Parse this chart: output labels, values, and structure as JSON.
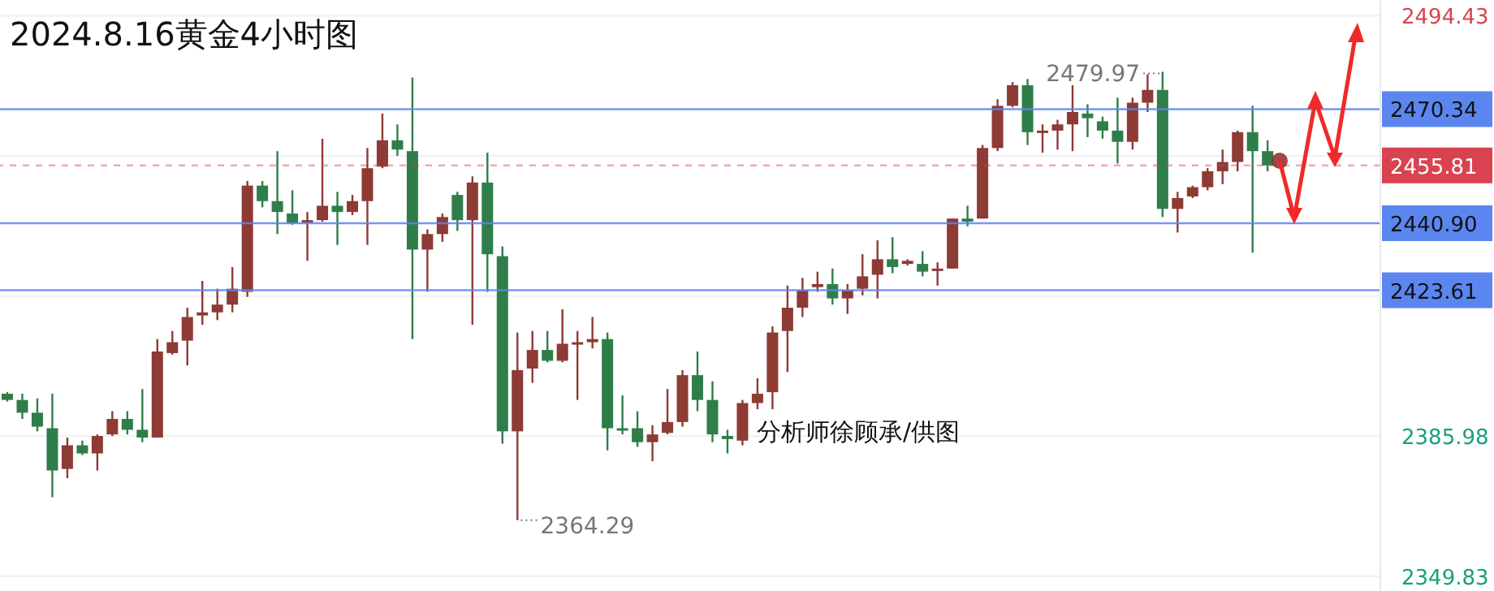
{
  "chart_data": {
    "type": "candlestick",
    "title": "2024.8.16黄金4小时图",
    "categories": [
      null,
      null,
      null,
      null,
      null,
      null,
      null,
      null,
      null,
      null,
      null,
      null,
      null,
      null,
      null,
      null,
      null,
      null,
      null,
      null,
      null,
      null,
      null,
      null,
      null,
      null,
      null,
      null,
      null,
      null,
      null,
      null,
      null,
      null,
      null,
      null,
      null,
      null,
      null,
      null,
      null,
      null,
      null,
      null,
      null,
      null,
      null,
      null,
      null,
      null,
      null,
      null,
      null,
      null,
      null,
      null,
      null,
      null,
      null,
      null,
      null,
      null,
      null,
      null,
      null,
      null,
      null,
      null,
      null,
      null,
      null,
      null,
      null,
      null,
      null,
      null,
      null,
      null,
      null,
      null,
      null,
      null,
      null,
      null,
      null,
      null,
      null,
      null,
      null,
      null,
      null,
      null
    ],
    "ohlc": [
      [
        2396.9,
        2397.3,
        2394.9,
        2395.3
      ],
      [
        2395.3,
        2396.9,
        2390.4,
        2392.0
      ],
      [
        2392.0,
        2395.7,
        2387.2,
        2388.4
      ],
      [
        2388.0,
        2396.9,
        2370.2,
        2377.1
      ],
      [
        2377.5,
        2385.6,
        2375.1,
        2383.6
      ],
      [
        2383.6,
        2384.8,
        2381.1,
        2381.5
      ],
      [
        2381.5,
        2386.4,
        2377.1,
        2386.0
      ],
      [
        2386.4,
        2392.4,
        2386.0,
        2390.4
      ],
      [
        2390.4,
        2392.4,
        2386.4,
        2387.6
      ],
      [
        2387.6,
        2398.1,
        2384.4,
        2385.6
      ],
      [
        2385.6,
        2411.0,
        2385.6,
        2407.8
      ],
      [
        2407.4,
        2413.1,
        2407.0,
        2410.2
      ],
      [
        2410.6,
        2419.1,
        2404.2,
        2416.7
      ],
      [
        2417.1,
        2426.0,
        2414.7,
        2417.9
      ],
      [
        2417.9,
        2424.0,
        2415.9,
        2419.9
      ],
      [
        2419.9,
        2429.6,
        2417.9,
        2424.0
      ],
      [
        2423.2,
        2451.8,
        2421.9,
        2450.6
      ],
      [
        2450.6,
        2451.8,
        2445.0,
        2446.6
      ],
      [
        2446.6,
        2459.5,
        2438.1,
        2443.8
      ],
      [
        2443.4,
        2449.4,
        2440.5,
        2440.9
      ],
      [
        2441.3,
        2443.8,
        2431.2,
        2441.7
      ],
      [
        2441.7,
        2462.7,
        2441.3,
        2445.4
      ],
      [
        2445.4,
        2449.0,
        2435.3,
        2443.8
      ],
      [
        2443.8,
        2448.2,
        2443.0,
        2446.6
      ],
      [
        2446.6,
        2460.3,
        2435.3,
        2455.1
      ],
      [
        2455.5,
        2469.2,
        2455.1,
        2462.3
      ],
      [
        2462.3,
        2466.4,
        2458.3,
        2459.9
      ],
      [
        2459.5,
        2478.5,
        2411.0,
        2434.1
      ],
      [
        2434.1,
        2439.3,
        2423.2,
        2438.1
      ],
      [
        2438.1,
        2443.4,
        2436.1,
        2442.5
      ],
      [
        2448.2,
        2449.0,
        2438.9,
        2441.7
      ],
      [
        2441.7,
        2453.0,
        2414.7,
        2451.4
      ],
      [
        2451.4,
        2459.1,
        2423.2,
        2432.9
      ],
      [
        2432.4,
        2434.9,
        2384.0,
        2387.2
      ],
      [
        2387.2,
        2412.7,
        2364.29,
        2403.0
      ],
      [
        2403.4,
        2413.1,
        2399.7,
        2408.2
      ],
      [
        2408.2,
        2413.1,
        2405.0,
        2405.4
      ],
      [
        2405.4,
        2418.7,
        2405.0,
        2409.8
      ],
      [
        2409.8,
        2413.1,
        2395.3,
        2410.2
      ],
      [
        2410.2,
        2416.7,
        2408.6,
        2411.0
      ],
      [
        2411.0,
        2412.7,
        2382.3,
        2388.0
      ],
      [
        2388.0,
        2396.5,
        2386.4,
        2387.6
      ],
      [
        2388.0,
        2392.4,
        2383.2,
        2384.4
      ],
      [
        2384.4,
        2388.8,
        2379.5,
        2386.4
      ],
      [
        2386.8,
        2398.1,
        2386.4,
        2389.6
      ],
      [
        2389.6,
        2403.0,
        2388.4,
        2401.7
      ],
      [
        2401.7,
        2407.8,
        2392.4,
        2395.3
      ],
      [
        2395.3,
        2400.1,
        2384.4,
        2386.4
      ],
      [
        2386.0,
        2387.6,
        2381.5,
        2385.2
      ],
      [
        2384.8,
        2395.3,
        2383.6,
        2394.5
      ],
      [
        2394.5,
        2400.9,
        2392.9,
        2396.9
      ],
      [
        2397.3,
        2414.3,
        2392.9,
        2412.7
      ],
      [
        2413.1,
        2424.8,
        2402.5,
        2419.1
      ],
      [
        2419.1,
        2426.8,
        2416.7,
        2423.6
      ],
      [
        2424.4,
        2428.4,
        2423.2,
        2425.2
      ],
      [
        2425.2,
        2429.2,
        2419.9,
        2421.5
      ],
      [
        2421.5,
        2425.2,
        2417.5,
        2423.6
      ],
      [
        2424.0,
        2432.9,
        2422.3,
        2427.2
      ],
      [
        2427.6,
        2436.5,
        2421.5,
        2431.6
      ],
      [
        2431.6,
        2437.3,
        2428.0,
        2429.6
      ],
      [
        2430.4,
        2431.6,
        2430.0,
        2431.2
      ],
      [
        2430.4,
        2433.7,
        2427.2,
        2428.4
      ],
      [
        2428.8,
        2430.8,
        2424.8,
        2429.2
      ],
      [
        2429.2,
        2442.1,
        2429.2,
        2442.1
      ],
      [
        2442.1,
        2445.4,
        2440.1,
        2441.3
      ],
      [
        2442.1,
        2461.1,
        2442.1,
        2460.3
      ],
      [
        2460.3,
        2472.9,
        2459.5,
        2471.2
      ],
      [
        2471.2,
        2477.3,
        2470.8,
        2476.5
      ],
      [
        2476.5,
        2478.1,
        2461.1,
        2464.4
      ],
      [
        2464.4,
        2466.4,
        2459.1,
        2464.8
      ],
      [
        2464.8,
        2467.6,
        2459.9,
        2466.4
      ],
      [
        2466.4,
        2476.5,
        2459.5,
        2469.6
      ],
      [
        2469.2,
        2471.6,
        2463.1,
        2468.0
      ],
      [
        2467.2,
        2468.4,
        2462.7,
        2464.8
      ],
      [
        2464.8,
        2473.3,
        2456.3,
        2461.9
      ],
      [
        2461.9,
        2473.3,
        2459.9,
        2472.0
      ],
      [
        2472.0,
        2479.3,
        2469.6,
        2475.3
      ],
      [
        2475.3,
        2479.97,
        2442.5,
        2444.6
      ],
      [
        2444.6,
        2449.0,
        2438.5,
        2447.4
      ],
      [
        2447.8,
        2450.6,
        2447.4,
        2450.2
      ],
      [
        2450.2,
        2455.1,
        2449.4,
        2454.3
      ],
      [
        2454.3,
        2459.9,
        2451.0,
        2456.7
      ],
      [
        2456.7,
        2464.8,
        2454.3,
        2464.4
      ],
      [
        2464.4,
        2471.2,
        2433.3,
        2459.5
      ],
      [
        2459.5,
        2462.3,
        2454.3,
        2455.81
      ],
      null,
      null,
      null,
      null,
      null,
      null,
      null
    ],
    "ylim": [
      2346,
      2498.5
    ],
    "yticks": [
      2349.83,
      2385.98,
      {
        "value": 2422.13,
        "label": null
      },
      {
        "value": 2458.28,
        "label": null
      },
      2494.43
    ],
    "grid": "y",
    "tick_labels": "y",
    "ref_lines": [
      {
        "axis": "y",
        "value": 2470.34,
        "label": "2470.34",
        "color": "#5b86f0",
        "line_style": "solid"
      },
      {
        "axis": "y",
        "value": 2455.81,
        "label": "2455.81",
        "color": "#d9434f",
        "line_style": "dashed"
      },
      {
        "axis": "y",
        "value": 2440.9,
        "label": "2440.90",
        "color": "#5b86f0",
        "line_style": "solid"
      },
      {
        "axis": "y",
        "value": 2423.61,
        "label": "2423.61",
        "color": "#5b86f0",
        "line_style": "solid"
      }
    ],
    "annotations": [
      "2479.97",
      "2364.29",
      "分析师徐顾承/供图"
    ]
  }
}
